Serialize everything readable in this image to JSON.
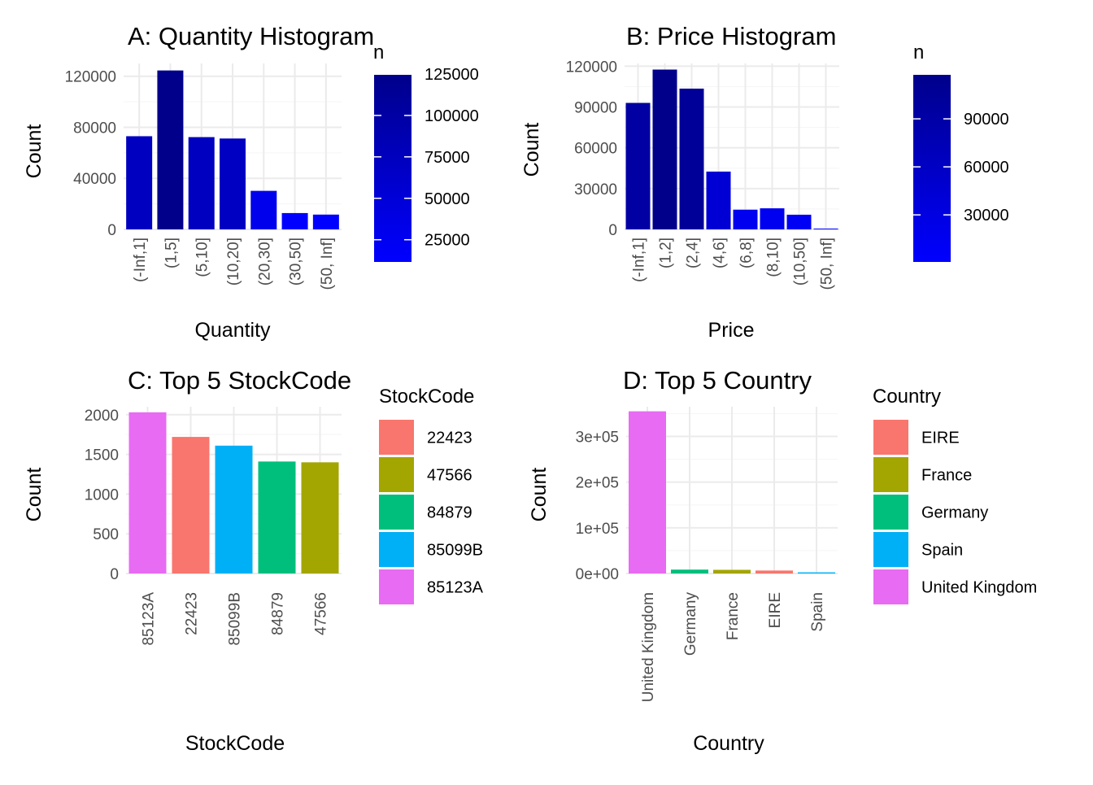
{
  "chart_data": [
    {
      "id": "A",
      "type": "bar",
      "title": "A: Quantity Histogram",
      "xlabel": "Quantity",
      "ylabel": "Count",
      "categories": [
        "(-Inf,1]",
        "(1,5]",
        "(5,10]",
        "(10,20]",
        "(20,30]",
        "(30,50]",
        "(50, Inf]"
      ],
      "values": [
        73000,
        124500,
        72300,
        71200,
        30200,
        12800,
        11600
      ],
      "ylim": [
        0,
        130000
      ],
      "yticks": [
        0,
        40000,
        80000,
        120000
      ],
      "ytick_labels": [
        "0",
        "40000",
        "80000",
        "120000"
      ],
      "fill": "gradient",
      "legend": {
        "title": "n",
        "type": "colorbar",
        "range": [
          11600,
          124500
        ],
        "ticks": [
          25000,
          50000,
          75000,
          100000,
          125000
        ],
        "tick_labels": [
          "25000",
          "50000",
          "75000",
          "100000",
          "125000"
        ],
        "low_color": "#0000ff",
        "high_color": "#00008b"
      },
      "grid": true
    },
    {
      "id": "B",
      "type": "bar",
      "title": "B: Price Histogram",
      "xlabel": "Price",
      "ylabel": "Count",
      "categories": [
        "(-Inf,1]",
        "(1,2]",
        "(2,4]",
        "(4,6]",
        "(6,8]",
        "(8,10]",
        "(10,50]",
        "(50, Inf]"
      ],
      "values": [
        93000,
        117500,
        103500,
        42500,
        14500,
        15500,
        10800,
        600
      ],
      "ylim": [
        0,
        122000
      ],
      "yticks": [
        0,
        30000,
        60000,
        90000,
        120000
      ],
      "ytick_labels": [
        "0",
        "30000",
        "60000",
        "90000",
        "120000"
      ],
      "fill": "gradient",
      "legend": {
        "title": "n",
        "type": "colorbar",
        "range": [
          600,
          117500
        ],
        "ticks": [
          30000,
          60000,
          90000
        ],
        "tick_labels": [
          "30000",
          "60000",
          "90000"
        ],
        "low_color": "#0000ff",
        "high_color": "#00008b"
      },
      "grid": true
    },
    {
      "id": "C",
      "type": "bar",
      "title": "C: Top 5 StockCode",
      "xlabel": "StockCode",
      "ylabel": "Count",
      "categories": [
        "85123A",
        "22423",
        "85099B",
        "84879",
        "47566"
      ],
      "values": [
        2030,
        1720,
        1610,
        1410,
        1400
      ],
      "ylim": [
        0,
        2100
      ],
      "yticks": [
        0,
        500,
        1000,
        1500,
        2000
      ],
      "ytick_labels": [
        "0",
        "500",
        "1000",
        "1500",
        "2000"
      ],
      "colors": [
        "#e76bf3",
        "#f8766d",
        "#00b0f6",
        "#00bf7d",
        "#a3a500"
      ],
      "legend": {
        "title": "StockCode",
        "type": "discrete",
        "items": [
          {
            "label": "22423",
            "color": "#f8766d"
          },
          {
            "label": "47566",
            "color": "#a3a500"
          },
          {
            "label": "84879",
            "color": "#00bf7d"
          },
          {
            "label": "85099B",
            "color": "#00b0f6"
          },
          {
            "label": "85123A",
            "color": "#e76bf3"
          }
        ]
      },
      "grid": true
    },
    {
      "id": "D",
      "type": "bar",
      "title": "D: Top 5 Country",
      "xlabel": "Country",
      "ylabel": "Count",
      "categories": [
        "United Kingdom",
        "Germany",
        "France",
        "EIRE",
        "Spain"
      ],
      "values": [
        355000,
        8500,
        8000,
        6500,
        2500
      ],
      "ylim": [
        0,
        365000
      ],
      "yticks": [
        0,
        100000,
        200000,
        300000
      ],
      "ytick_labels": [
        "0e+00",
        "1e+05",
        "2e+05",
        "3e+05"
      ],
      "colors": [
        "#e76bf3",
        "#00bf7d",
        "#a3a500",
        "#f8766d",
        "#00b0f6"
      ],
      "legend": {
        "title": "Country",
        "type": "discrete",
        "items": [
          {
            "label": "EIRE",
            "color": "#f8766d"
          },
          {
            "label": "France",
            "color": "#a3a500"
          },
          {
            "label": "Germany",
            "color": "#00bf7d"
          },
          {
            "label": "Spain",
            "color": "#00b0f6"
          },
          {
            "label": "United Kingdom",
            "color": "#e76bf3"
          }
        ]
      },
      "grid": true
    }
  ]
}
